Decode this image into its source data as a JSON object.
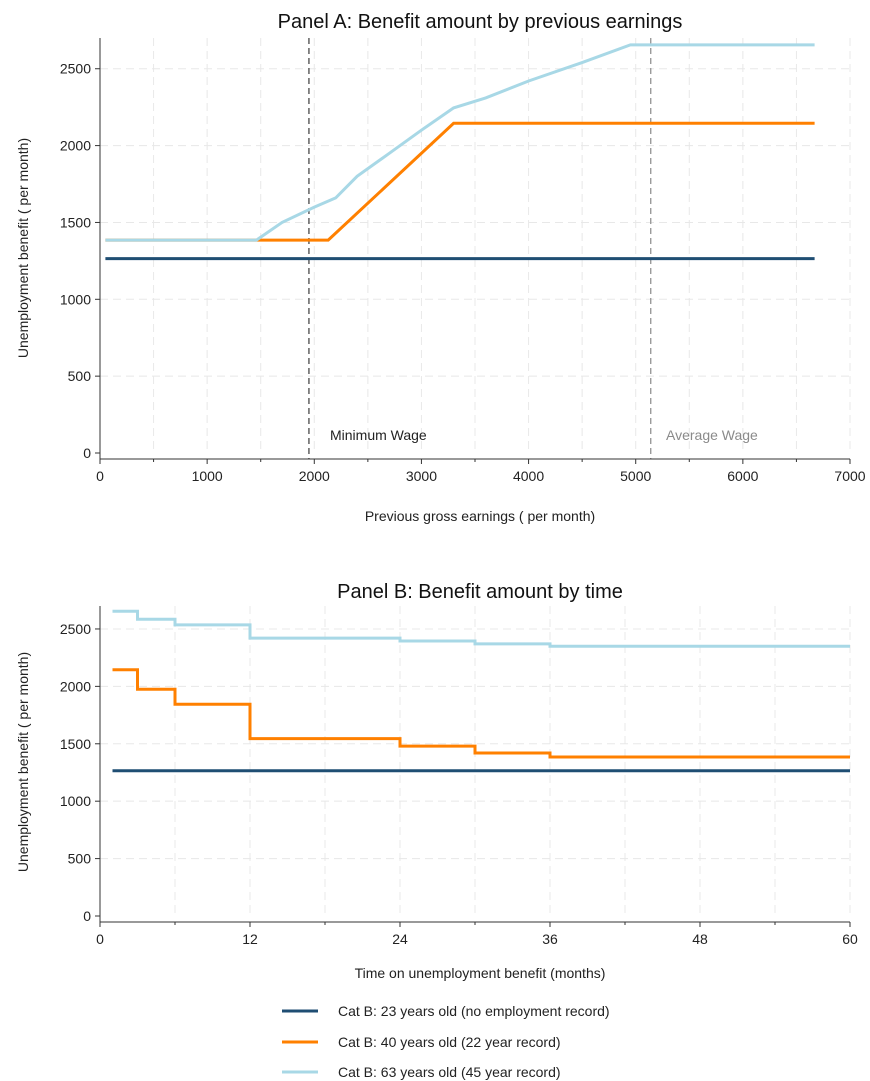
{
  "colors": {
    "series1": "#1f4e73",
    "series2": "#ff8000",
    "series3": "#a8d8e6",
    "minwage_line": "#555555",
    "avgwage_line": "#9a9a9a",
    "grid": "#e8e8e8"
  },
  "legend": {
    "items": [
      {
        "label": "Cat B: 23 years old (no employment record)",
        "color": "#1f4e73"
      },
      {
        "label": "Cat B: 40 years old (22 year record)",
        "color": "#ff8000"
      },
      {
        "label": "Cat B: 63 years old (45 year record)",
        "color": "#a8d8e6"
      }
    ]
  },
  "chart_data": [
    {
      "type": "line",
      "title": "Panel A: Benefit amount by previous earnings",
      "xlabel": "Previous gross earnings ( per month)",
      "ylabel": "Unemployment benefit ( per month)",
      "xlim": [
        0,
        7000
      ],
      "ylim": [
        0,
        2700
      ],
      "xticks": [
        0,
        1000,
        2000,
        3000,
        4000,
        5000,
        6000,
        7000
      ],
      "yticks": [
        0,
        500,
        1000,
        1500,
        2000,
        2500
      ],
      "grid": true,
      "annotations": [
        {
          "text": "Minimum Wage",
          "x": 1950
        },
        {
          "text": "Average Wage",
          "x": 5140
        }
      ],
      "series": [
        {
          "name": "Cat B: 23 years old (no employment record)",
          "x": [
            50,
            6670
          ],
          "y": [
            1265,
            1265
          ]
        },
        {
          "name": "Cat B: 40 years old (22 year record)",
          "x": [
            50,
            2130,
            3300,
            6670
          ],
          "y": [
            1385,
            1385,
            2145,
            2145
          ]
        },
        {
          "name": "Cat B: 63 years old (45 year record)",
          "x": [
            50,
            1460,
            1700,
            2000,
            2200,
            2400,
            2700,
            3000,
            3300,
            3600,
            4000,
            4500,
            4950,
            6670
          ],
          "y": [
            1385,
            1385,
            1500,
            1600,
            1660,
            1800,
            1950,
            2100,
            2245,
            2310,
            2420,
            2540,
            2655,
            2655
          ]
        }
      ]
    },
    {
      "type": "line",
      "title": "Panel B: Benefit amount by time",
      "xlabel": "Time on unemployment benefit (months)",
      "ylabel": "Unemployment benefit ( per month)",
      "xlim": [
        0,
        60
      ],
      "ylim": [
        0,
        2700
      ],
      "xticks": [
        0,
        12,
        24,
        36,
        48,
        60
      ],
      "yticks": [
        0,
        500,
        1000,
        1500,
        2000,
        2500
      ],
      "grid": true,
      "series": [
        {
          "name": "Cat B: 23 years old (no employment record)",
          "x": [
            1,
            60
          ],
          "y": [
            1265,
            1265
          ]
        },
        {
          "name": "Cat B: 40 years old (22 year record)",
          "x": [
            1,
            3,
            3,
            6,
            6,
            12,
            12,
            24,
            24,
            30,
            30,
            36,
            36,
            60
          ],
          "y": [
            2145,
            2145,
            1975,
            1975,
            1845,
            1845,
            1545,
            1545,
            1480,
            1480,
            1420,
            1420,
            1385,
            1385
          ]
        },
        {
          "name": "Cat B: 63 years old (45 year record)",
          "x": [
            1,
            3,
            3,
            6,
            6,
            12,
            12,
            24,
            24,
            30,
            30,
            36,
            36,
            60
          ],
          "y": [
            2655,
            2655,
            2585,
            2585,
            2535,
            2535,
            2420,
            2420,
            2395,
            2395,
            2370,
            2370,
            2350,
            2350
          ]
        }
      ]
    }
  ]
}
